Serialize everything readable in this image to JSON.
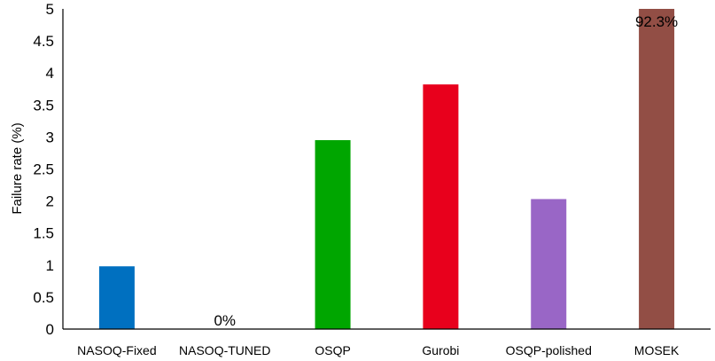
{
  "chart_data": {
    "type": "bar",
    "title": "",
    "xlabel": "",
    "ylabel": "Failure rate (%)",
    "ylim": [
      0,
      5
    ],
    "yticks": [
      "0",
      "0.5",
      "1",
      "1.5",
      "2",
      "2.5",
      "3",
      "3.5",
      "4",
      "4.5",
      "5"
    ],
    "grid": false,
    "legend": "none",
    "categories": [
      "NASOQ-Fixed",
      "NASOQ-TUNED",
      "OSQP",
      "Gurobi",
      "OSQP-polished",
      "MOSEK"
    ],
    "values": [
      0.98,
      0,
      2.95,
      3.82,
      2.03,
      92.3
    ],
    "colors": [
      "#0070c0",
      "#0070c0",
      "#00a600",
      "#e8001c",
      "#9966c6",
      "#924e45"
    ],
    "data_labels": [
      "",
      "0%",
      "",
      "",
      "",
      "92.3%"
    ]
  }
}
